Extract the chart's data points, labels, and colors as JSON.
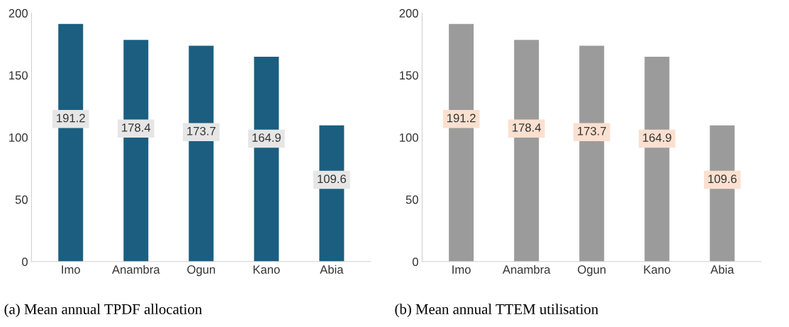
{
  "chart_data": [
    {
      "type": "bar",
      "title": "(a) Mean annual TPDF allocation",
      "categories": [
        "Imo",
        "Anambra",
        "Ogun",
        "Kano",
        "Abia"
      ],
      "series": [
        {
          "color": "#1b5e80",
          "values": [
            191.2,
            178.4,
            173.7,
            164.9,
            109.6
          ]
        }
      ],
      "ylim": [
        0,
        200
      ],
      "yticks": [
        0,
        50,
        100,
        150,
        200
      ],
      "data_labels": true,
      "grid": false,
      "legend": false
    },
    {
      "type": "bar",
      "title": "(b) Mean annual TTEM utilisation",
      "categories": [
        "Imo",
        "Anambra",
        "Ogun",
        "Kano",
        "Abia"
      ],
      "series": [
        {
          "color": "#9b9b9b",
          "values": [
            191.2,
            178.4,
            173.7,
            164.9,
            109.6
          ]
        }
      ],
      "ylim": [
        0,
        200
      ],
      "yticks": [
        0,
        50,
        100,
        150,
        200
      ],
      "data_labels": true,
      "grid": false,
      "legend": false
    }
  ]
}
